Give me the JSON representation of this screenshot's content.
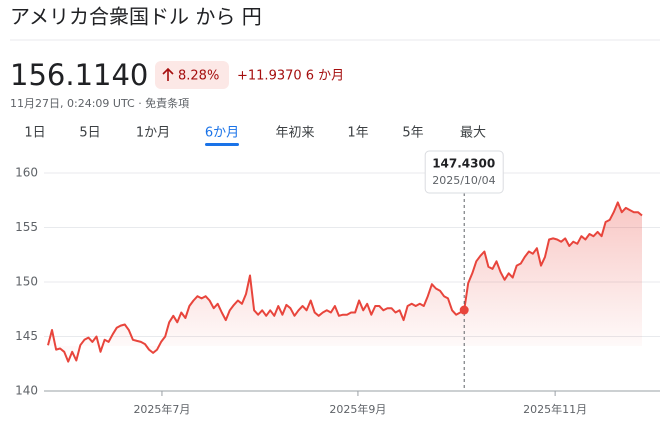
{
  "header": {
    "title": "アメリカ合衆国ドル から 円",
    "price": "156.1140",
    "change_percent": "8.28%",
    "change": "+11.9370 6 か月",
    "timestamp": "11月27日, 0:24:09 UTC · 免責条項"
  },
  "tabs": {
    "items": [
      "1日",
      "5日",
      "1か月",
      "6か月",
      "年初来",
      "1年",
      "5年",
      "最大"
    ],
    "selected": 3
  },
  "chart_data": {
    "type": "line",
    "color": "#e8453c",
    "grid": true,
    "ylim": [
      140,
      160
    ],
    "yticks": [
      140,
      145,
      150,
      155,
      160
    ],
    "xticks": [
      {
        "value": 28.2,
        "label": "2025年7月"
      },
      {
        "value": 76.7,
        "label": "2025年9月"
      },
      {
        "value": 125.5,
        "label": "2025年11月"
      }
    ],
    "values": [
      144.2,
      145.6,
      143.8,
      143.9,
      143.6,
      142.7,
      143.6,
      142.8,
      144.2,
      144.7,
      144.9,
      144.5,
      145.0,
      143.6,
      144.7,
      144.5,
      145.2,
      145.8,
      146.0,
      146.1,
      145.6,
      144.7,
      144.6,
      144.5,
      144.3,
      143.8,
      143.5,
      143.8,
      144.5,
      145.0,
      146.3,
      146.9,
      146.3,
      147.2,
      146.7,
      147.8,
      148.3,
      148.7,
      148.5,
      148.7,
      148.3,
      147.6,
      148.0,
      147.2,
      146.5,
      147.4,
      147.9,
      148.3,
      148.0,
      148.9,
      150.6,
      147.4,
      147.0,
      147.4,
      146.9,
      147.4,
      146.9,
      147.8,
      147.0,
      147.9,
      147.6,
      146.9,
      147.4,
      147.8,
      147.4,
      148.3,
      147.2,
      146.9,
      147.2,
      147.4,
      147.2,
      147.8,
      146.9,
      147.0,
      147.0,
      147.2,
      147.2,
      148.3,
      147.4,
      148.0,
      147.0,
      147.8,
      147.8,
      147.4,
      147.6,
      147.6,
      147.2,
      147.4,
      146.5,
      147.8,
      148.0,
      147.8,
      148.0,
      147.8,
      148.7,
      149.8,
      149.4,
      149.2,
      148.7,
      148.5,
      147.4,
      147.0,
      147.2,
      147.43,
      149.9,
      150.8,
      151.9,
      152.4,
      152.8,
      151.4,
      151.2,
      151.9,
      150.9,
      150.2,
      150.8,
      150.4,
      151.5,
      151.7,
      152.3,
      152.8,
      152.6,
      153.1,
      151.5,
      152.3,
      153.9,
      154.0,
      153.9,
      153.7,
      154.0,
      153.3,
      153.7,
      153.5,
      154.2,
      153.9,
      154.4,
      154.2,
      154.6,
      154.2,
      155.5,
      155.7,
      156.4,
      157.3,
      156.4,
      156.8,
      156.6,
      156.4,
      156.4,
      156.1
    ],
    "tooltip": {
      "index": 103,
      "value_label": "147.4300",
      "date": "2025/10/04"
    }
  }
}
